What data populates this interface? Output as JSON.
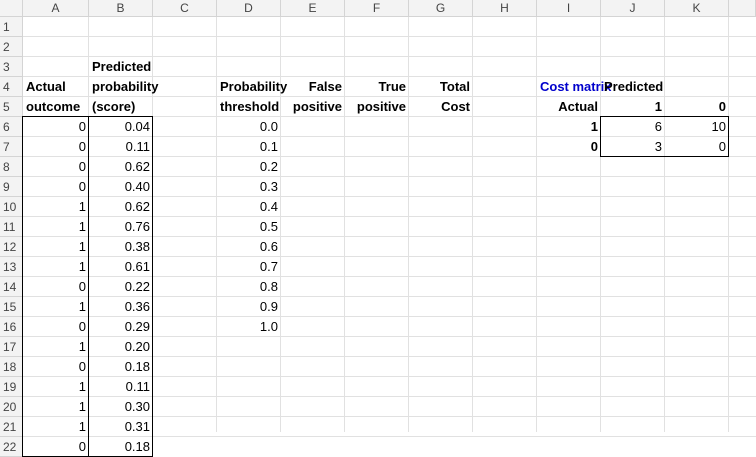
{
  "columns": [
    "A",
    "B",
    "C",
    "D",
    "E",
    "F",
    "G",
    "H",
    "I",
    "J",
    "K"
  ],
  "rows": [
    "1",
    "2",
    "3",
    "4",
    "5",
    "6",
    "7",
    "8",
    "9",
    "10",
    "11",
    "12",
    "13",
    "14",
    "15",
    "16",
    "17",
    "18",
    "19",
    "20",
    "21",
    "22"
  ],
  "headers": {
    "b3": "Predicted",
    "a4": "Actual",
    "b4": "probability",
    "a5": "outcome",
    "b5": "(score)",
    "d4": "Probability",
    "d5": "threshold",
    "e4": "False",
    "e5": "positive",
    "f4": "True",
    "f5": "positive",
    "g4": "Total",
    "g5": "Cost"
  },
  "cost_matrix": {
    "title": "Cost matrix",
    "predicted": "Predicted",
    "actual": "Actual",
    "pred_1": "1",
    "pred_0": "0",
    "row1_label": "1",
    "row0_label": "0",
    "r1c1": "6",
    "r1c0": "10",
    "r0c1": "3",
    "r0c0": "0"
  },
  "actual_outcomes": [
    "0",
    "0",
    "0",
    "0",
    "1",
    "1",
    "1",
    "1",
    "0",
    "1",
    "0",
    "1",
    "0",
    "1",
    "1",
    "1",
    "0"
  ],
  "scores": [
    "0.04",
    "0.11",
    "0.62",
    "0.40",
    "0.62",
    "0.76",
    "0.38",
    "0.61",
    "0.22",
    "0.36",
    "0.29",
    "0.20",
    "0.18",
    "0.11",
    "0.30",
    "0.31",
    "0.18"
  ],
  "thresholds": [
    "0.0",
    "0.1",
    "0.2",
    "0.3",
    "0.4",
    "0.5",
    "0.6",
    "0.7",
    "0.8",
    "0.9",
    "1.0"
  ]
}
